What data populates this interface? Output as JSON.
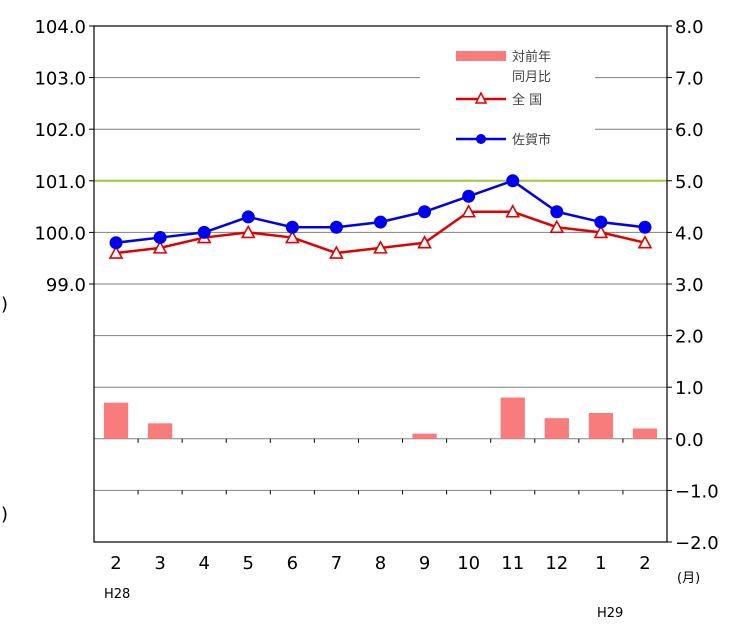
{
  "chart_data": {
    "type": "line",
    "categories": [
      "2",
      "3",
      "4",
      "5",
      "6",
      "7",
      "8",
      "9",
      "10",
      "11",
      "12",
      "1",
      "2"
    ],
    "x_unit": "(月)",
    "era_labels": {
      "start": "H28",
      "later": "H29"
    },
    "left_axis": {
      "ticks": [
        "104.0",
        "103.0",
        "102.0",
        "101.0",
        "100.0",
        "99.0"
      ],
      "ylim": [
        97.0,
        104.0
      ]
    },
    "right_axis": {
      "ticks": [
        "8.0",
        "7.0",
        "6.0",
        "5.0",
        "4.0",
        "3.0",
        "2.0",
        "1.0",
        "0.0",
        "−1.0",
        "−2.0"
      ],
      "ylim": [
        -2.0,
        8.0
      ]
    },
    "reference_line": {
      "axis": "left",
      "value": 101.0,
      "color": "#99cc33"
    },
    "series": [
      {
        "name": "対前年同月比",
        "type": "bar",
        "axis": "right",
        "color": "#f87c7c",
        "values": [
          0.7,
          0.3,
          0.0,
          0.0,
          0.0,
          0.0,
          0.0,
          0.1,
          0.0,
          0.8,
          0.4,
          0.5,
          0.2
        ]
      },
      {
        "name": "全 国",
        "type": "line",
        "axis": "left",
        "color": "#e00000",
        "marker": "open-triangle",
        "values": [
          99.6,
          99.7,
          99.9,
          100.0,
          99.9,
          99.6,
          99.7,
          99.8,
          100.4,
          100.4,
          100.1,
          100.0,
          99.8
        ]
      },
      {
        "name": "佐賀市",
        "type": "line",
        "axis": "left",
        "color": "#0000ee",
        "marker": "filled-circle",
        "values": [
          99.8,
          99.9,
          100.0,
          100.3,
          100.1,
          100.1,
          100.2,
          100.4,
          100.7,
          101.0,
          100.4,
          100.2,
          100.1
        ]
      }
    ],
    "legend": {
      "placement": "top-right",
      "bar_label_lines": [
        "対前年",
        "同月比"
      ],
      "entries": [
        "全 国",
        "佐賀市"
      ]
    },
    "edge_glyphs": [
      ")",
      ")"
    ],
    "grid": true
  }
}
